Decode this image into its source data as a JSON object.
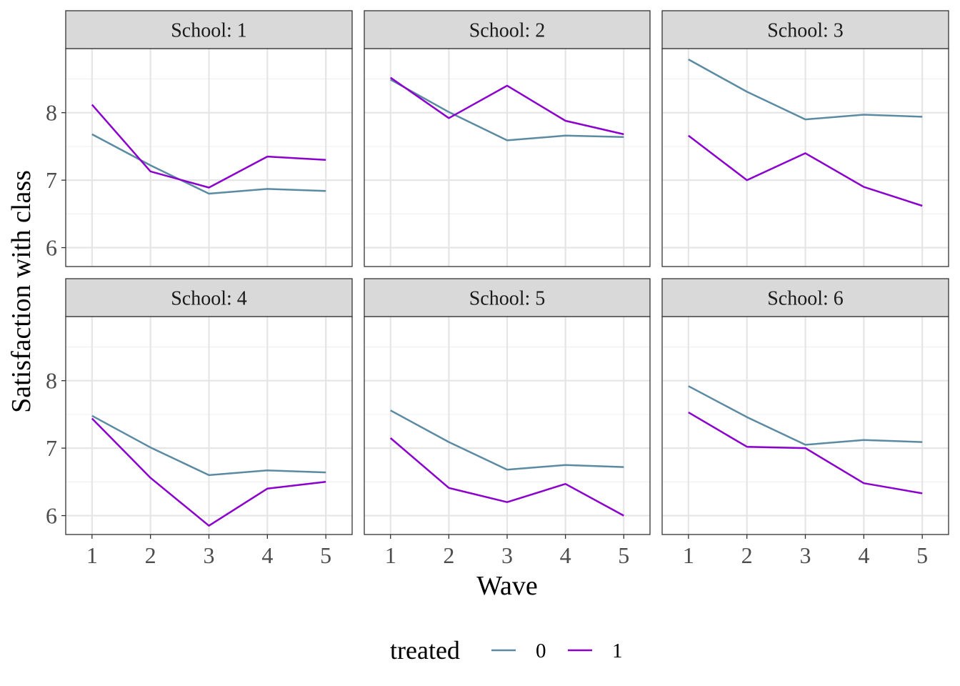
{
  "chart_data": {
    "type": "line",
    "xlabel": "Wave",
    "ylabel": "Satisfaction with class",
    "x": [
      1,
      2,
      3,
      4,
      5
    ],
    "x_ticks": [
      "1",
      "2",
      "3",
      "4",
      "5"
    ],
    "y_ticks": [
      "6",
      "7",
      "8"
    ],
    "ylim": [
      5.72,
      8.95
    ],
    "xlim": [
      0.55,
      5.45
    ],
    "grid": true,
    "legend": {
      "title": "treated",
      "position": "bottom",
      "entries": [
        {
          "label": "0",
          "color": "#5b8aa3"
        },
        {
          "label": "1",
          "color": "#8b00cc"
        }
      ]
    },
    "panels": [
      {
        "strip": "School: 1",
        "series": [
          {
            "name": "0",
            "values": [
              7.68,
              7.22,
              6.8,
              6.87,
              6.84
            ]
          },
          {
            "name": "1",
            "values": [
              8.12,
              7.13,
              6.89,
              7.35,
              7.3
            ]
          }
        ]
      },
      {
        "strip": "School: 2",
        "series": [
          {
            "name": "0",
            "values": [
              8.49,
              8.01,
              7.59,
              7.66,
              7.64
            ]
          },
          {
            "name": "1",
            "values": [
              8.52,
              7.92,
              8.4,
              7.88,
              7.68
            ]
          }
        ]
      },
      {
        "strip": "School: 3",
        "series": [
          {
            "name": "0",
            "values": [
              8.79,
              8.31,
              7.9,
              7.97,
              7.94
            ]
          },
          {
            "name": "1",
            "values": [
              7.66,
              7.0,
              7.4,
              6.9,
              6.62
            ]
          }
        ]
      },
      {
        "strip": "School: 4",
        "series": [
          {
            "name": "0",
            "values": [
              7.48,
              7.01,
              6.6,
              6.67,
              6.64
            ]
          },
          {
            "name": "1",
            "values": [
              7.44,
              6.56,
              5.85,
              6.4,
              6.5
            ]
          }
        ]
      },
      {
        "strip": "School: 5",
        "series": [
          {
            "name": "0",
            "values": [
              7.56,
              7.09,
              6.68,
              6.75,
              6.72
            ]
          },
          {
            "name": "1",
            "values": [
              7.15,
              6.41,
              6.2,
              6.47,
              6.0
            ]
          }
        ]
      },
      {
        "strip": "School: 6",
        "series": [
          {
            "name": "0",
            "values": [
              7.92,
              7.46,
              7.05,
              7.12,
              7.09
            ]
          },
          {
            "name": "1",
            "values": [
              7.53,
              7.02,
              7.0,
              6.48,
              6.33
            ]
          }
        ]
      }
    ]
  }
}
